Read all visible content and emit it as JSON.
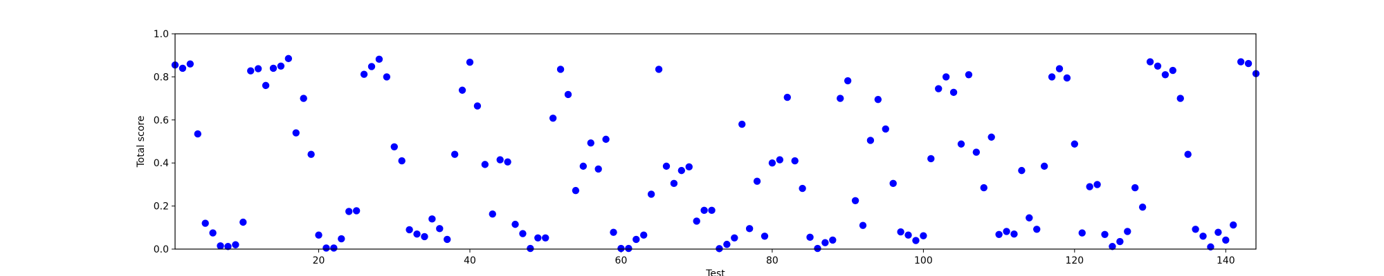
{
  "chart_data": {
    "type": "scatter",
    "title": "",
    "xlabel": "Test",
    "ylabel": "Total score",
    "xlim": [
      1,
      144
    ],
    "ylim": [
      0.0,
      1.0
    ],
    "x_ticks": [
      20,
      40,
      60,
      80,
      100,
      120,
      140
    ],
    "y_ticks": [
      0.0,
      0.2,
      0.4,
      0.6,
      0.8,
      1.0
    ],
    "y_tick_labels": [
      "0.0",
      "0.2",
      "0.4",
      "0.6",
      "0.8",
      "1.0"
    ],
    "grid": false,
    "marker_color": "#0000ff",
    "series": [
      {
        "x": [
          1,
          2,
          3,
          4,
          5,
          6,
          7,
          8,
          9,
          10,
          11,
          12,
          13,
          14,
          15,
          16,
          17,
          18,
          19,
          20,
          21,
          22,
          23,
          24,
          25,
          26,
          27,
          28,
          29,
          30,
          31,
          32,
          33,
          34,
          35,
          36,
          37,
          38,
          39,
          40,
          41,
          42,
          43,
          44,
          45,
          46,
          47,
          48,
          49,
          50,
          51,
          52,
          53,
          54,
          55,
          56,
          57,
          58,
          59,
          60,
          61,
          62,
          63,
          64,
          65,
          66,
          67,
          68,
          69,
          70,
          71,
          72,
          73,
          74,
          75,
          76,
          77,
          78,
          79,
          80,
          81,
          82,
          83,
          84,
          85,
          86,
          87,
          88,
          89,
          90,
          91,
          92,
          93,
          94,
          95,
          96,
          97,
          98,
          99,
          100,
          101,
          102,
          103,
          104,
          105,
          106,
          107,
          108,
          109,
          110,
          111,
          112,
          113,
          114,
          115,
          116,
          117,
          118,
          119,
          120,
          121,
          122,
          123,
          124,
          125,
          126,
          127,
          128,
          129,
          130,
          131,
          132,
          133,
          134,
          135,
          136,
          137,
          138,
          139,
          140,
          141,
          142,
          143,
          144
        ],
        "y": [
          0.855,
          0.84,
          0.86,
          0.535,
          0.12,
          0.075,
          0.015,
          0.012,
          0.02,
          0.125,
          0.828,
          0.838,
          0.76,
          0.84,
          0.85,
          0.885,
          0.54,
          0.7,
          0.44,
          0.065,
          0.005,
          0.005,
          0.048,
          0.175,
          0.178,
          0.812,
          0.848,
          0.882,
          0.8,
          0.475,
          0.41,
          0.09,
          0.07,
          0.058,
          0.14,
          0.095,
          0.045,
          0.44,
          0.738,
          0.868,
          0.665,
          0.393,
          0.163,
          0.415,
          0.405,
          0.115,
          0.072,
          0.003,
          0.052,
          0.052,
          0.608,
          0.835,
          0.718,
          0.272,
          0.385,
          0.493,
          0.372,
          0.51,
          0.078,
          0.003,
          0.003,
          0.045,
          0.065,
          0.255,
          0.835,
          0.385,
          0.305,
          0.365,
          0.382,
          0.13,
          0.18,
          0.18,
          0.002,
          0.022,
          0.052,
          0.58,
          0.095,
          0.315,
          0.06,
          0.4,
          0.415,
          0.705,
          0.41,
          0.282,
          0.055,
          0.003,
          0.03,
          0.042,
          0.7,
          0.782,
          0.225,
          0.11,
          0.505,
          0.695,
          0.558,
          0.305,
          0.08,
          0.065,
          0.04,
          0.062,
          0.42,
          0.745,
          0.8,
          0.728,
          0.488,
          0.81,
          0.45,
          0.285,
          0.52,
          0.068,
          0.082,
          0.07,
          0.365,
          0.145,
          0.092,
          0.385,
          0.8,
          0.838,
          0.795,
          0.488,
          0.075,
          0.29,
          0.3,
          0.068,
          0.012,
          0.035,
          0.082,
          0.285,
          0.195,
          0.87,
          0.85,
          0.81,
          0.83,
          0.7,
          0.44,
          0.092,
          0.06,
          0.01,
          0.078,
          0.042,
          0.112,
          0.87,
          0.862,
          0.815
        ]
      }
    ]
  }
}
